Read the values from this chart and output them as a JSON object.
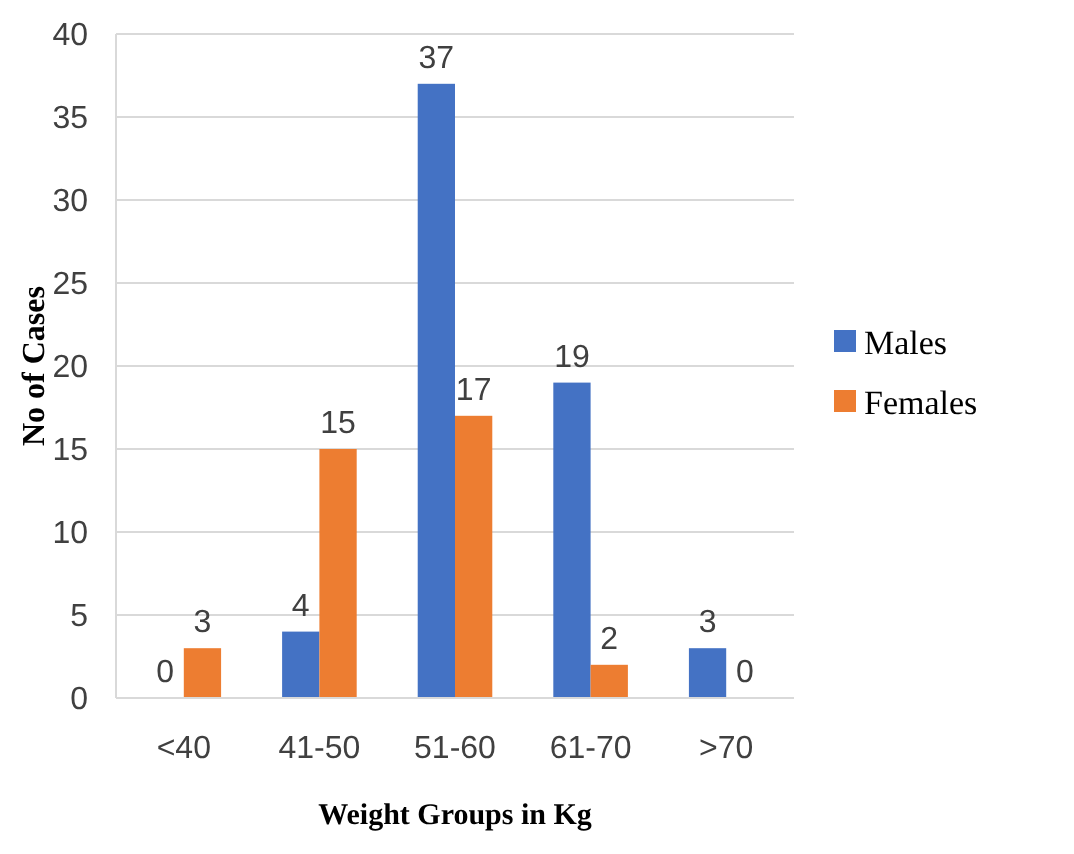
{
  "chart_data": {
    "type": "bar",
    "xlabel": "Weight Groups in Kg",
    "ylabel": "No of Cases",
    "categories": [
      "<40",
      "41-50",
      "51-60",
      "61-70",
      ">70"
    ],
    "series": [
      {
        "name": "Males",
        "color": "#4472c4",
        "values": [
          0,
          4,
          37,
          19,
          3
        ]
      },
      {
        "name": "Females",
        "color": "#ed7d31",
        "values": [
          3,
          15,
          17,
          2,
          0
        ]
      }
    ],
    "ylim": [
      0,
      40
    ],
    "yticks": [
      0,
      5,
      10,
      15,
      20,
      25,
      30,
      35,
      40
    ],
    "grid": "y",
    "legend": "right",
    "data_labels": true
  }
}
